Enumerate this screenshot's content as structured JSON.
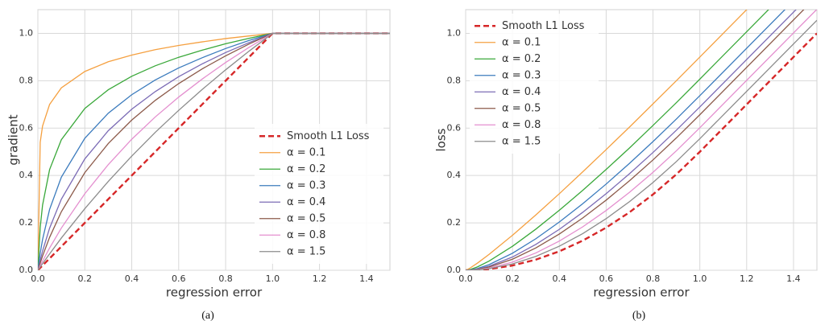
{
  "chart_data": [
    {
      "type": "line",
      "caption": "(a)",
      "xlabel": "regression error",
      "ylabel": "gradient",
      "x": [
        0,
        0.01,
        0.02,
        0.05,
        0.1,
        0.2,
        0.3,
        0.4,
        0.5,
        0.6,
        0.7,
        0.8,
        0.9,
        1.0,
        1.5
      ],
      "xlim": [
        0,
        1.5
      ],
      "ylim": [
        0,
        1.1
      ],
      "xticks": [
        {
          "value": 0,
          "label": "0.0"
        },
        {
          "value": 0.2,
          "label": "0.2"
        },
        {
          "value": 0.4,
          "label": "0.4"
        },
        {
          "value": 0.6,
          "label": "0.6"
        },
        {
          "value": 0.8,
          "label": "0.8"
        },
        {
          "value": 1.0,
          "label": "1.0"
        },
        {
          "value": 1.2,
          "label": "1.2"
        },
        {
          "value": 1.4,
          "label": "1.4"
        }
      ],
      "yticks": [
        {
          "value": 0,
          "label": "0.0"
        },
        {
          "value": 0.2,
          "label": "0.2"
        },
        {
          "value": 0.4,
          "label": "0.4"
        },
        {
          "value": 0.6,
          "label": "0.6"
        },
        {
          "value": 0.8,
          "label": "0.8"
        },
        {
          "value": 1.0,
          "label": "1.0"
        }
      ],
      "grid": true,
      "legend": "lower right",
      "series": [
        {
          "name": "Smooth L1 Loss",
          "color": "#d62728",
          "linestyle": "dashed",
          "values": [
            0,
            0.01,
            0.02,
            0.05,
            0.1,
            0.2,
            0.3,
            0.4,
            0.5,
            0.6,
            0.7,
            0.8,
            0.9,
            1.0,
            1.0
          ]
        },
        {
          "name": "α = 0.1",
          "color": "#f5a040",
          "linestyle": "solid",
          "values": [
            0,
            0.54,
            0.609,
            0.7,
            0.77,
            0.839,
            0.88,
            0.908,
            0.931,
            0.949,
            0.964,
            0.978,
            0.989,
            1.0,
            1.0
          ]
        },
        {
          "name": "α = 0.2",
          "color": "#3aa83a",
          "linestyle": "solid",
          "values": [
            0,
            0.181,
            0.275,
            0.425,
            0.551,
            0.683,
            0.762,
            0.819,
            0.863,
            0.899,
            0.929,
            0.956,
            0.979,
            1.0,
            1.0
          ]
        },
        {
          "name": "α = 0.3",
          "color": "#3b7bbd",
          "linestyle": "solid",
          "values": [
            0,
            0.072,
            0.13,
            0.257,
            0.393,
            0.557,
            0.663,
            0.741,
            0.803,
            0.854,
            0.897,
            0.936,
            0.97,
            1.0,
            1.0
          ]
        },
        {
          "name": "α = 0.4",
          "color": "#7b6bb5",
          "linestyle": "solid",
          "values": [
            0,
            0.042,
            0.081,
            0.178,
            0.3,
            0.47,
            0.589,
            0.68,
            0.754,
            0.817,
            0.871,
            0.919,
            0.961,
            1.0,
            1.0
          ]
        },
        {
          "name": "α = 0.5",
          "color": "#8c5a4a",
          "linestyle": "solid",
          "values": [
            0,
            0.031,
            0.06,
            0.139,
            0.247,
            0.412,
            0.535,
            0.634,
            0.717,
            0.788,
            0.85,
            0.905,
            0.955,
            1.0,
            1.0
          ]
        },
        {
          "name": "α = 0.8",
          "color": "#e48fcf",
          "linestyle": "solid",
          "values": [
            0,
            0.02,
            0.039,
            0.094,
            0.178,
            0.323,
            0.446,
            0.553,
            0.647,
            0.731,
            0.807,
            0.877,
            0.941,
            1.0,
            1.0
          ]
        },
        {
          "name": "α = 1.5",
          "color": "#8c8c8c",
          "linestyle": "solid",
          "values": [
            0,
            0.014,
            0.028,
            0.069,
            0.136,
            0.26,
            0.375,
            0.482,
            0.582,
            0.675,
            0.763,
            0.846,
            0.925,
            1.0,
            1.0
          ]
        }
      ]
    },
    {
      "type": "line",
      "caption": "(b)",
      "xlabel": "regression error",
      "ylabel": "loss",
      "x": [
        0,
        0.01,
        0.02,
        0.05,
        0.1,
        0.2,
        0.3,
        0.4,
        0.5,
        0.6,
        0.7,
        0.8,
        0.9,
        1.0,
        1.5
      ],
      "xlim": [
        0,
        1.5
      ],
      "ylim": [
        0,
        1.1
      ],
      "xticks": [
        {
          "value": 0,
          "label": "0.0"
        },
        {
          "value": 0.2,
          "label": "0.2"
        },
        {
          "value": 0.4,
          "label": "0.4"
        },
        {
          "value": 0.6,
          "label": "0.6"
        },
        {
          "value": 0.8,
          "label": "0.8"
        },
        {
          "value": 1.0,
          "label": "1.0"
        },
        {
          "value": 1.2,
          "label": "1.2"
        },
        {
          "value": 1.4,
          "label": "1.4"
        }
      ],
      "yticks": [
        {
          "value": 0,
          "label": "0.0"
        },
        {
          "value": 0.2,
          "label": "0.2"
        },
        {
          "value": 0.4,
          "label": "0.4"
        },
        {
          "value": 0.6,
          "label": "0.6"
        },
        {
          "value": 0.8,
          "label": "0.8"
        },
        {
          "value": 1.0,
          "label": "1.0"
        }
      ],
      "grid": true,
      "legend": "upper left",
      "series": [
        {
          "name": "Smooth L1 Loss",
          "color": "#d62728",
          "linestyle": "dashed",
          "values": [
            0,
            5e-05,
            0.0002,
            0.00125,
            0.005,
            0.02,
            0.045,
            0.08,
            0.125,
            0.18,
            0.245,
            0.32,
            0.405,
            0.5,
            1.0
          ]
        },
        {
          "name": "α = 0.1",
          "color": "#f5a040",
          "linestyle": "solid",
          "values": [
            0,
            0.0044,
            0.0102,
            0.03,
            0.067,
            0.1478,
            0.234,
            0.3232,
            0.4155,
            0.5094,
            0.6048,
            0.7024,
            0.8001,
            0.9,
            1.4
          ]
        },
        {
          "name": "α = 0.2",
          "color": "#3aa83a",
          "linestyle": "solid",
          "values": [
            0,
            0.001,
            0.0034,
            0.0141,
            0.0388,
            0.1012,
            0.1738,
            0.2532,
            0.3374,
            0.4255,
            0.5166,
            0.6113,
            0.7077,
            0.8068,
            1.3068
          ]
        },
        {
          "name": "α = 0.3",
          "color": "#3b7bbd",
          "linestyle": "solid",
          "values": [
            0,
            0.0004,
            0.0014,
            0.0073,
            0.0238,
            0.072,
            0.1333,
            0.2037,
            0.2809,
            0.3639,
            0.4515,
            0.5432,
            0.6385,
            0.737,
            1.237
          ]
        },
        {
          "name": "α = 0.4",
          "color": "#7b6bb5",
          "linestyle": "solid",
          "values": [
            0,
            0.0002,
            0.0008,
            0.0048,
            0.0169,
            0.056,
            0.1092,
            0.1727,
            0.2446,
            0.3232,
            0.4077,
            0.4972,
            0.5913,
            0.6894,
            1.1894
          ]
        },
        {
          "name": "α = 0.5",
          "color": "#8c5a4a",
          "linestyle": "solid",
          "values": [
            0,
            0.0002,
            0.0006,
            0.0036,
            0.0134,
            0.0468,
            0.0944,
            0.153,
            0.2207,
            0.296,
            0.378,
            0.4657,
            0.5588,
            0.6565,
            1.1565
          ]
        },
        {
          "name": "α = 0.8",
          "color": "#e48fcf",
          "linestyle": "solid",
          "values": [
            0,
            0.0001,
            0.0004,
            0.0024,
            0.0092,
            0.0345,
            0.0732,
            0.1233,
            0.1833,
            0.2523,
            0.3293,
            0.4135,
            0.5044,
            0.6016,
            1.1016
          ]
        },
        {
          "name": "α = 1.5",
          "color": "#8c8c8c",
          "linestyle": "solid",
          "values": [
            0,
            0.0001,
            0.0003,
            0.0018,
            0.0069,
            0.0269,
            0.0586,
            0.1016,
            0.1547,
            0.2178,
            0.2899,
            0.3704,
            0.4589,
            0.5552,
            1.0552
          ]
        }
      ]
    }
  ]
}
